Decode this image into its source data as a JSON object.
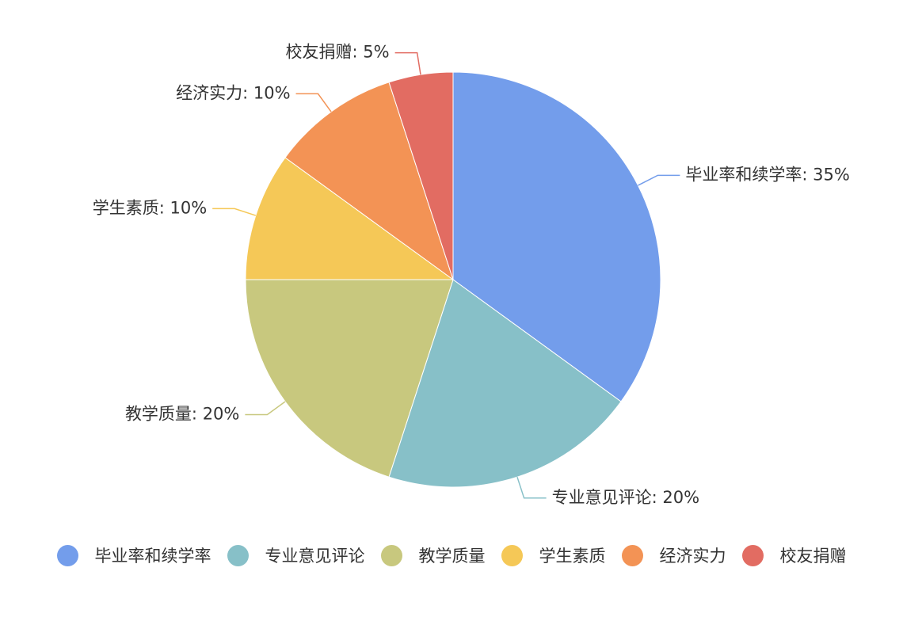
{
  "chart_data": {
    "type": "pie",
    "slices": [
      {
        "label": "毕业率和续学率",
        "value": 35,
        "display": "毕业率和续学率: 35%",
        "color": "#739deb"
      },
      {
        "label": "专业意见评论",
        "value": 20,
        "display": "专业意见评论: 20%",
        "color": "#87c0c8"
      },
      {
        "label": "教学质量",
        "value": 20,
        "display": "教学质量: 20%",
        "color": "#c8c87e"
      },
      {
        "label": "学生素质",
        "value": 10,
        "display": "学生素质: 10%",
        "color": "#f5c857"
      },
      {
        "label": "经济实力",
        "value": 10,
        "display": "经济实力: 10%",
        "color": "#f39355"
      },
      {
        "label": "校友捐赠",
        "value": 5,
        "display": "校友捐赠: 5%",
        "color": "#e26c62"
      }
    ],
    "legend_position": "bottom"
  }
}
